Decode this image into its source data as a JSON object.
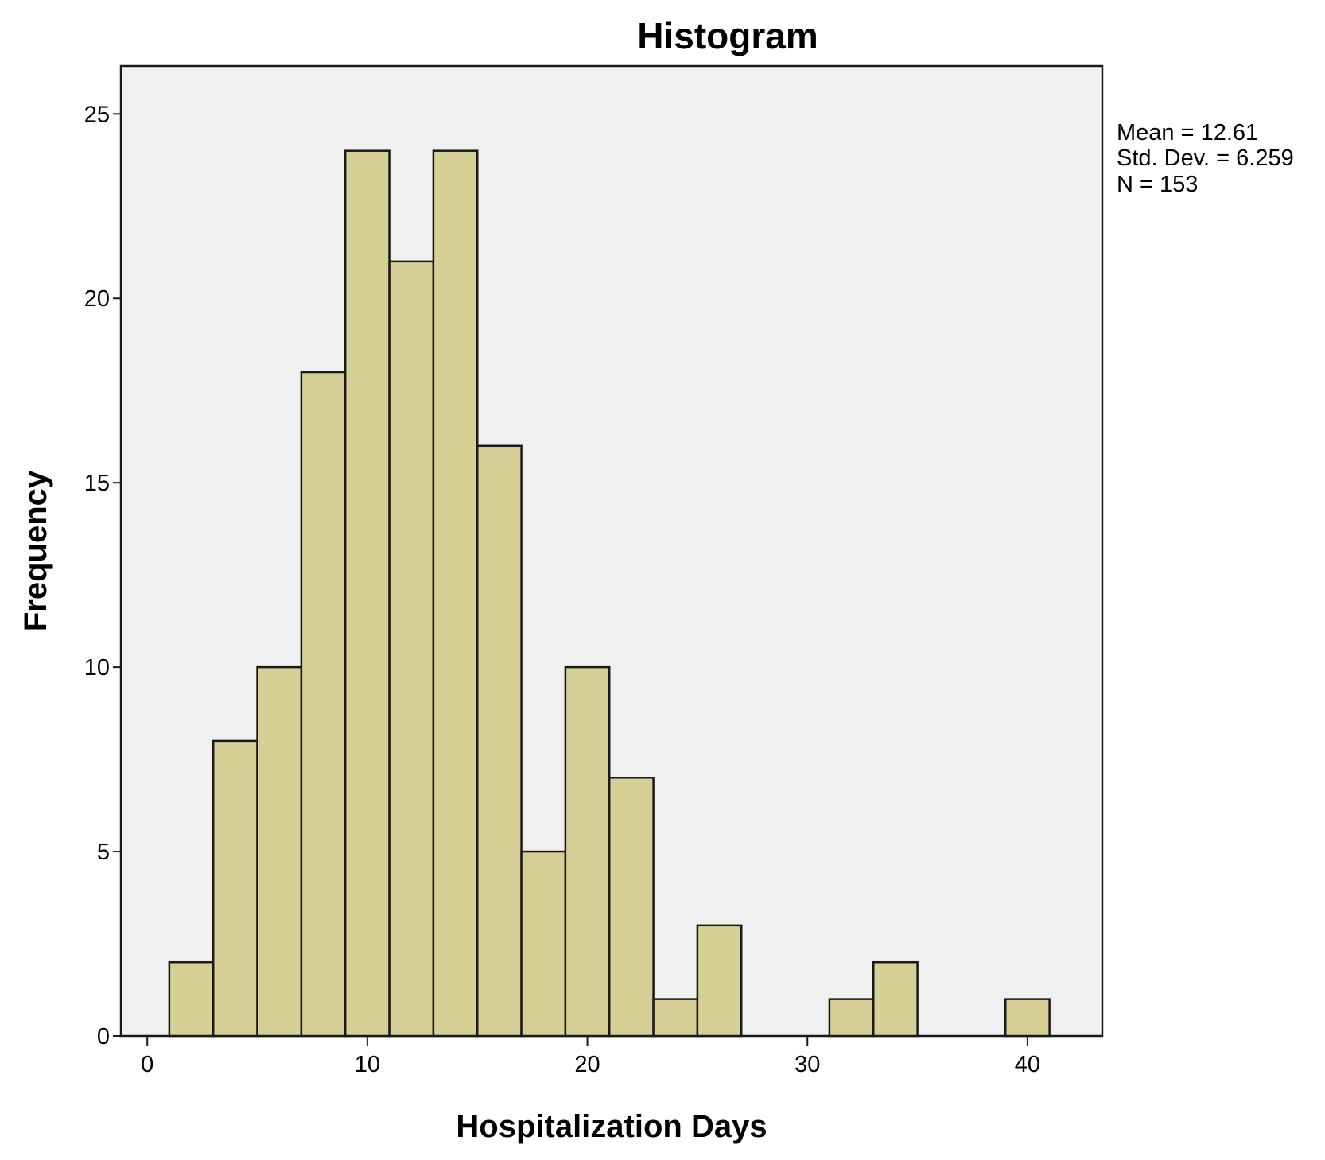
{
  "chart_data": {
    "type": "bar",
    "title": "Histogram",
    "xlabel": "Hospitalization Days",
    "ylabel": "Frequency",
    "bin_width": 2,
    "bins": [
      {
        "start": 1,
        "end": 3,
        "count": 2
      },
      {
        "start": 3,
        "end": 5,
        "count": 8
      },
      {
        "start": 5,
        "end": 7,
        "count": 10
      },
      {
        "start": 7,
        "end": 9,
        "count": 18
      },
      {
        "start": 9,
        "end": 11,
        "count": 24
      },
      {
        "start": 11,
        "end": 13,
        "count": 21
      },
      {
        "start": 13,
        "end": 15,
        "count": 24
      },
      {
        "start": 15,
        "end": 17,
        "count": 16
      },
      {
        "start": 17,
        "end": 19,
        "count": 5
      },
      {
        "start": 19,
        "end": 21,
        "count": 10
      },
      {
        "start": 21,
        "end": 23,
        "count": 7
      },
      {
        "start": 23,
        "end": 25,
        "count": 1
      },
      {
        "start": 25,
        "end": 27,
        "count": 3
      },
      {
        "start": 31,
        "end": 33,
        "count": 1
      },
      {
        "start": 33,
        "end": 35,
        "count": 2
      },
      {
        "start": 39,
        "end": 41,
        "count": 1
      }
    ],
    "xlim": [
      -1.2,
      43.4
    ],
    "ylim": [
      0,
      26.3
    ],
    "xticks": [
      0,
      10,
      20,
      30,
      40
    ],
    "yticks": [
      0,
      5,
      10,
      15,
      20,
      25
    ],
    "grid": false,
    "legend": false,
    "stats": {
      "mean_text": "Mean = 12.61",
      "std_text": "Std. Dev. = 6.259",
      "n_text": "N = 153"
    },
    "colors": {
      "bar_fill": "#d7d096",
      "bar_stroke": "#1a1a1a",
      "plot_background": "#f0f0f0",
      "frame": "#1a1a1a"
    }
  }
}
